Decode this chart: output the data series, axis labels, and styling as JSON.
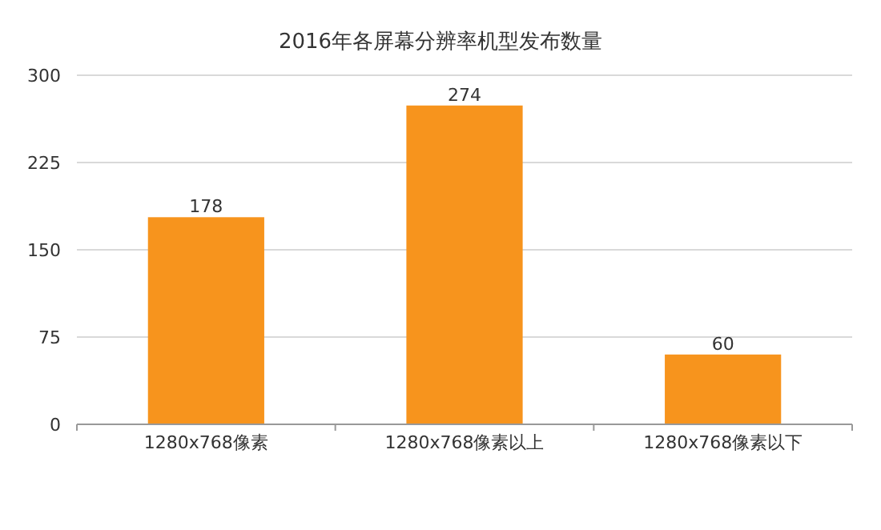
{
  "chart_data": {
    "type": "bar",
    "title": "2016年各屏幕分辨率机型发布数量",
    "categories": [
      "1280x768像素",
      "1280x768像素以上",
      "1280x768像素以下"
    ],
    "values": [
      178,
      274,
      60
    ],
    "color": "#f7941d",
    "ylim": [
      0,
      300
    ],
    "yticks": [
      0,
      75,
      150,
      225,
      300
    ],
    "grid": "y",
    "data_labels": true
  }
}
